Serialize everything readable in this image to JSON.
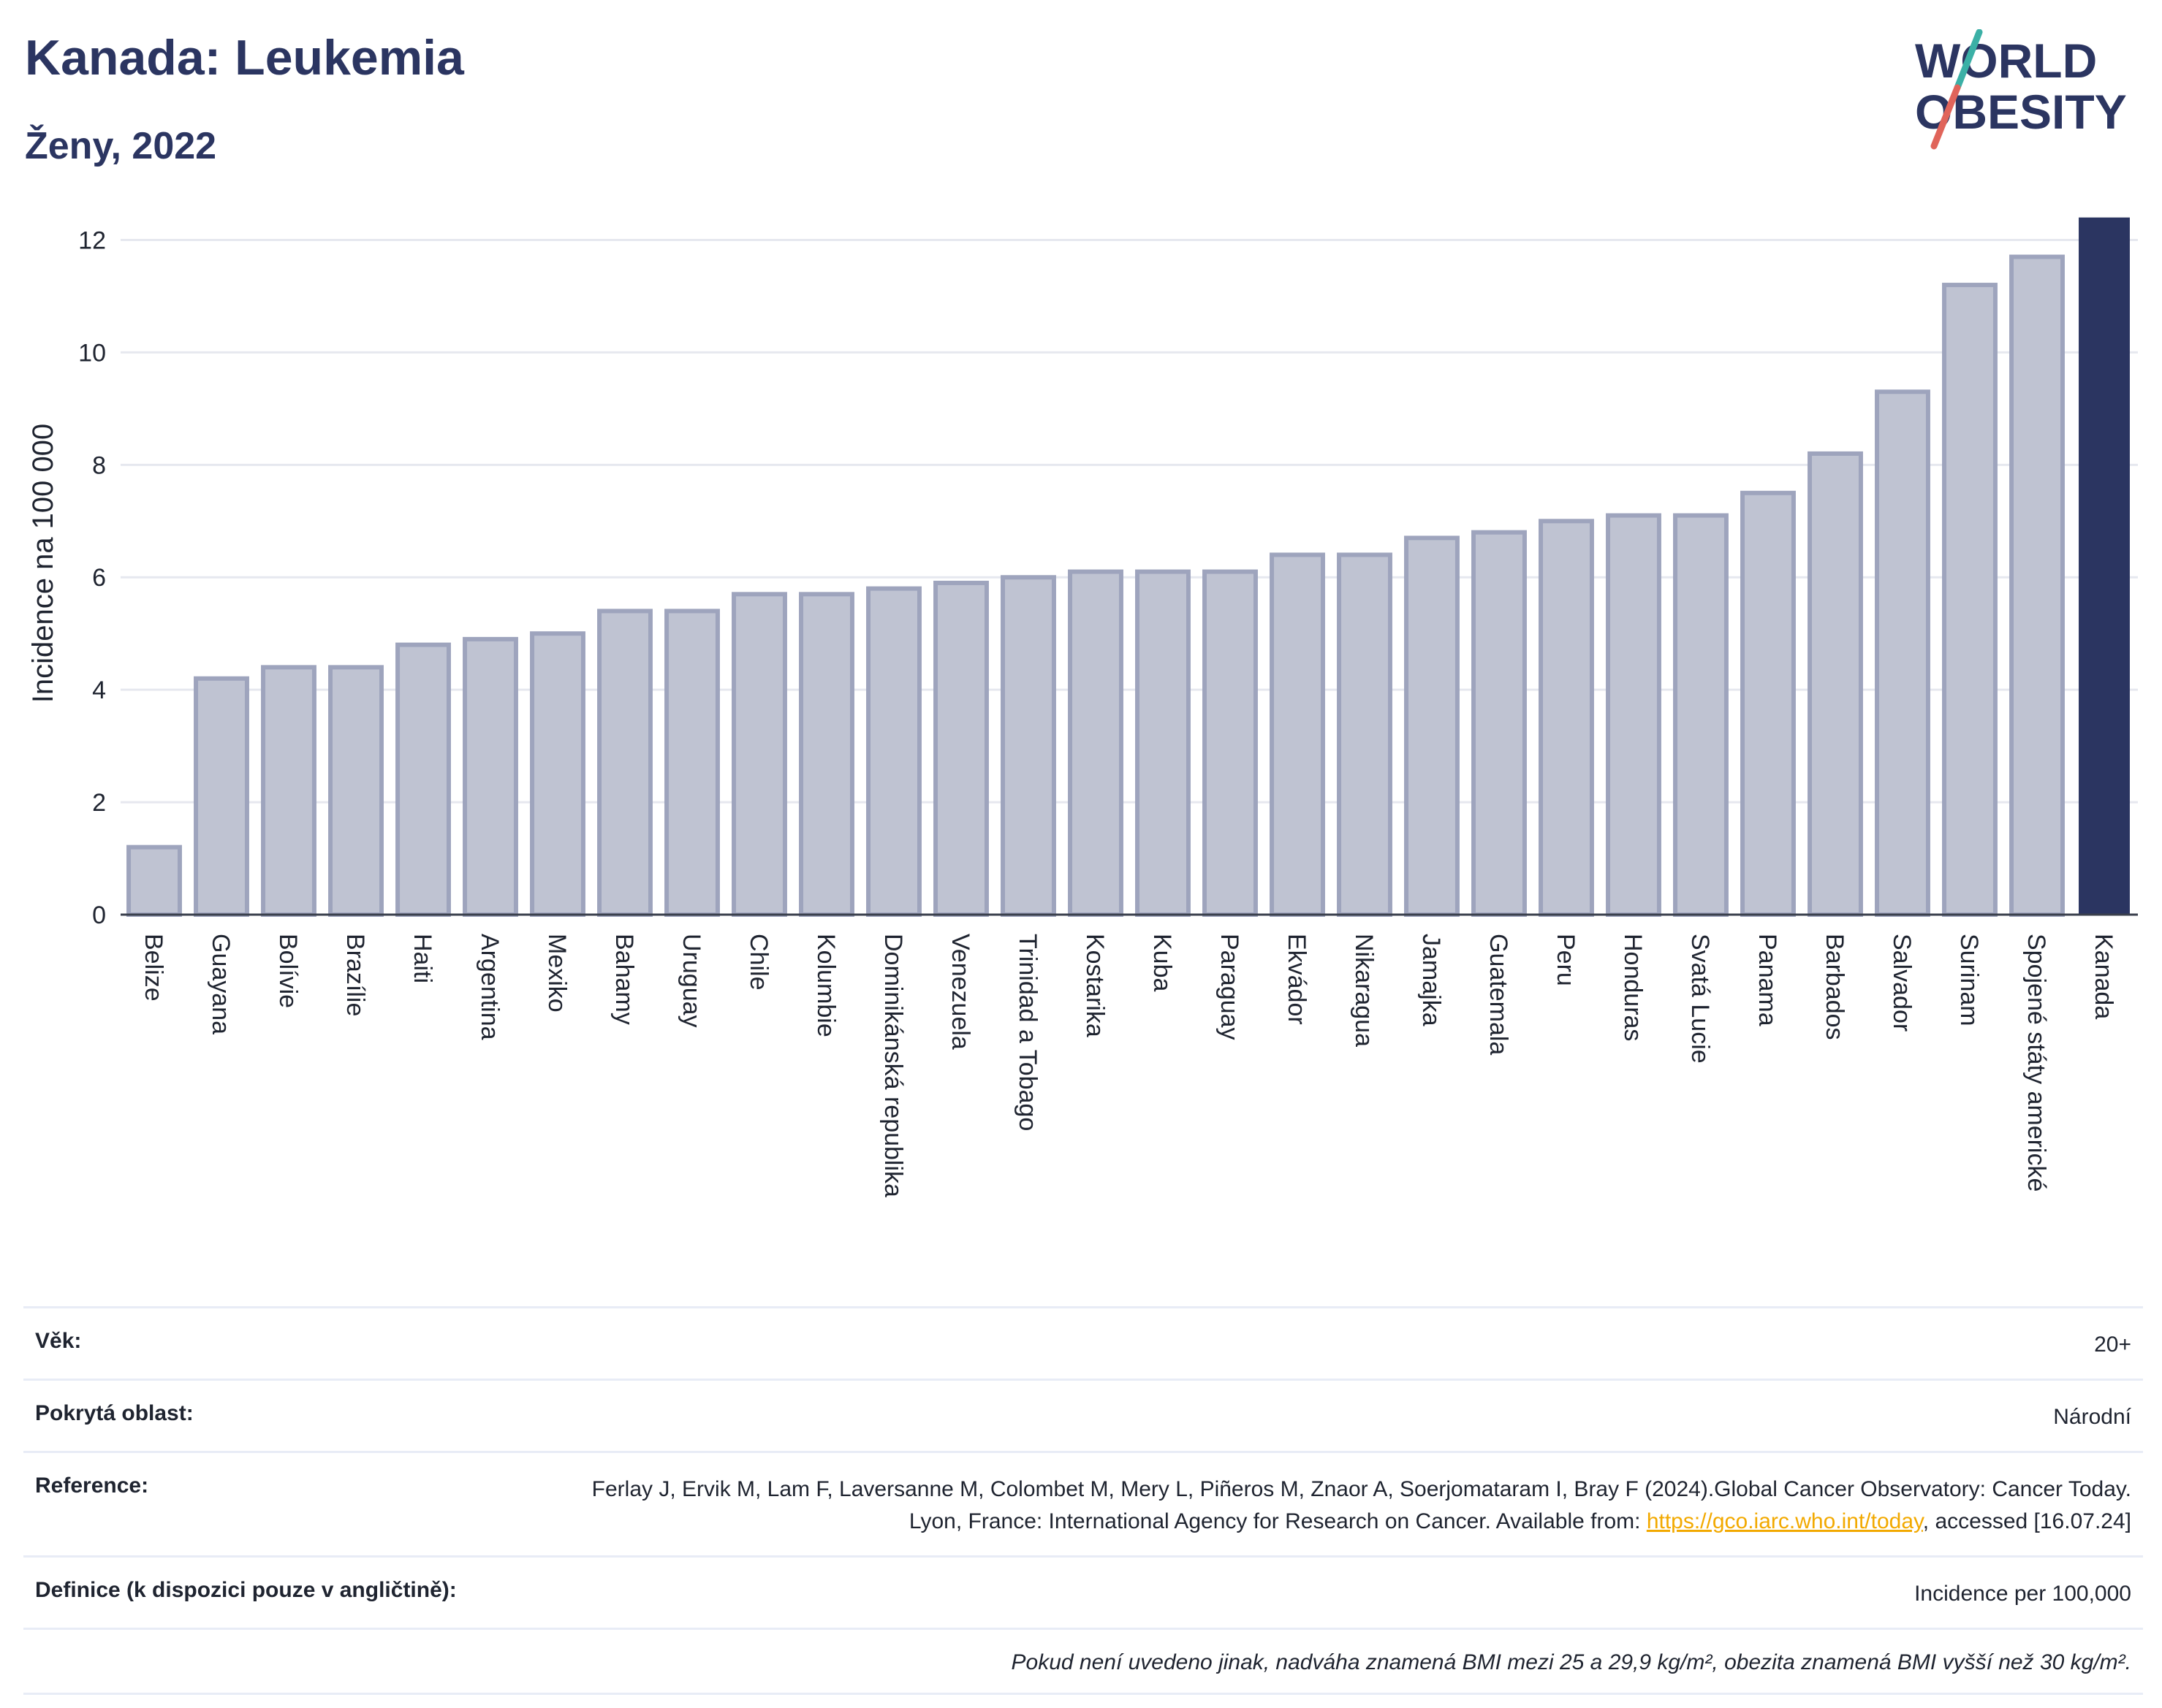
{
  "header": {
    "title": "Kanada: Leukemia",
    "subtitle": "Ženy, 2022",
    "logo_line1": "WORLD",
    "logo_line2": "OBESITY"
  },
  "colors": {
    "highlight_bar": "#2b3561",
    "bar_fill": "#bfc3d2",
    "bar_stroke": "#9ea4bd",
    "title": "#2b3561",
    "link": "#f2a900",
    "logo_slash_teal": "#3bb0a6",
    "logo_slash_red": "#e0645a"
  },
  "chart_data": {
    "type": "bar",
    "ylabel": "Incidence na 100 000",
    "ylim": [
      0,
      12.5
    ],
    "yticks": [
      0,
      2,
      4,
      6,
      8,
      10,
      12
    ],
    "grid": true,
    "highlight": "Kanada",
    "categories": [
      "Belize",
      "Guayana",
      "Bolívie",
      "Brazílie",
      "Haiti",
      "Argentina",
      "Mexiko",
      "Bahamy",
      "Uruguay",
      "Chile",
      "Kolumbie",
      "Dominikánská republika",
      "Venezuela",
      "Trinidad a Tobago",
      "Kostarika",
      "Kuba",
      "Paraguay",
      "Ekvádor",
      "Nikaragua",
      "Jamajka",
      "Guatemala",
      "Peru",
      "Honduras",
      "Svatá Lucie",
      "Panama",
      "Barbados",
      "Salvador",
      "Surinam",
      "Spojené státy americké",
      "Kanada"
    ],
    "values": [
      1.2,
      4.2,
      4.4,
      4.4,
      4.8,
      4.9,
      5.0,
      5.4,
      5.4,
      5.7,
      5.7,
      5.8,
      5.9,
      6.0,
      6.1,
      6.1,
      6.1,
      6.4,
      6.4,
      6.7,
      6.8,
      7.0,
      7.1,
      7.1,
      7.5,
      8.2,
      9.3,
      11.2,
      11.7,
      12.4
    ]
  },
  "info": {
    "age_label": "Věk:",
    "age_value": "20+",
    "area_label": "Pokrytá oblast:",
    "area_value": "Národní",
    "ref_label": "Reference:",
    "ref_text_1": "Ferlay J, Ervik M, Lam F, Laversanne M, Colombet M, Mery L, Piñeros M, Znaor A, Soerjomataram I, Bray F (2024).Global Cancer Observatory: Cancer Today. Lyon, France: International Agency for Research on Cancer. Available from: ",
    "ref_link": "https://gco.iarc.who.int/today",
    "ref_text_2": ", accessed [16.07.24]",
    "def_label": "Definice (k dispozici pouze v angličtině):",
    "def_value": "Incidence per 100,000",
    "note": "Pokud není uvedeno jinak, nadváha znamená BMI mezi 25 a 29,9 kg/m², obezita znamená BMI vyšší než 30 kg/m²."
  }
}
